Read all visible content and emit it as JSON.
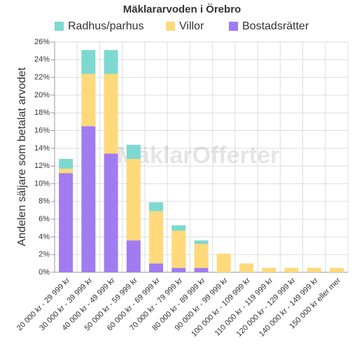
{
  "chart_data": {
    "type": "stacked_bar",
    "title": "Mäklararvoden i Örebro",
    "y_label": "Andelen säljare som betalat arvodet",
    "watermark": "MäklarOfferter",
    "categories": [
      "20 000 kr - 29 999 kr",
      "30 000 kr - 39 999 kr",
      "40 000 kr - 49 999 kr",
      "50 000 kr - 59 999 kr",
      "60 000 kr - 69 999 kr",
      "70 000 kr - 79 999 kr",
      "80 000 kr - 89 999 kr",
      "90 000 kr - 99 999 kr",
      "100 000 kr - 109 999 kr",
      "110 000 kr - 119 999 kr",
      "120 000 kr - 129 999 kr",
      "140 000 kr - 149 999 kr",
      "150 000 kr eller mer"
    ],
    "series": [
      {
        "name": "Radhus/parhus",
        "color": "#7dd9d0",
        "values": [
          1.1,
          2.7,
          2.7,
          1.6,
          1.0,
          0.6,
          0.4,
          0,
          0,
          0,
          0,
          0,
          0
        ]
      },
      {
        "name": "Villor",
        "color": "#ffd97a",
        "values": [
          0.5,
          5.9,
          9.0,
          9.2,
          5.9,
          4.2,
          2.7,
          2.1,
          1.0,
          0.5,
          0.5,
          0.5,
          0.5
        ]
      },
      {
        "name": "Bostadsrätter",
        "color": "#a07cf0",
        "values": [
          11.2,
          16.5,
          13.4,
          3.6,
          1.0,
          0.5,
          0.5,
          0,
          0,
          0,
          0,
          0,
          0
        ]
      }
    ],
    "stack_order": [
      2,
      1,
      0
    ],
    "ylim": [
      0,
      26
    ],
    "yticks": [
      {
        "value": 0,
        "label": "0%"
      },
      {
        "value": 2,
        "label": "2%"
      },
      {
        "value": 4,
        "label": "4%"
      },
      {
        "value": 6,
        "label": "6%"
      },
      {
        "value": 8,
        "label": "8%"
      },
      {
        "value": 10,
        "label": "10%"
      },
      {
        "value": 12,
        "label": "12%"
      },
      {
        "value": 14,
        "label": "14%"
      },
      {
        "value": 16,
        "label": "16%"
      },
      {
        "value": 18,
        "label": "18%"
      },
      {
        "value": 20,
        "label": "20%"
      },
      {
        "value": 22,
        "label": "22%"
      },
      {
        "value": 24,
        "label": "24%"
      },
      {
        "value": 26,
        "label": "26%"
      }
    ],
    "grid": true,
    "legend": "top"
  }
}
